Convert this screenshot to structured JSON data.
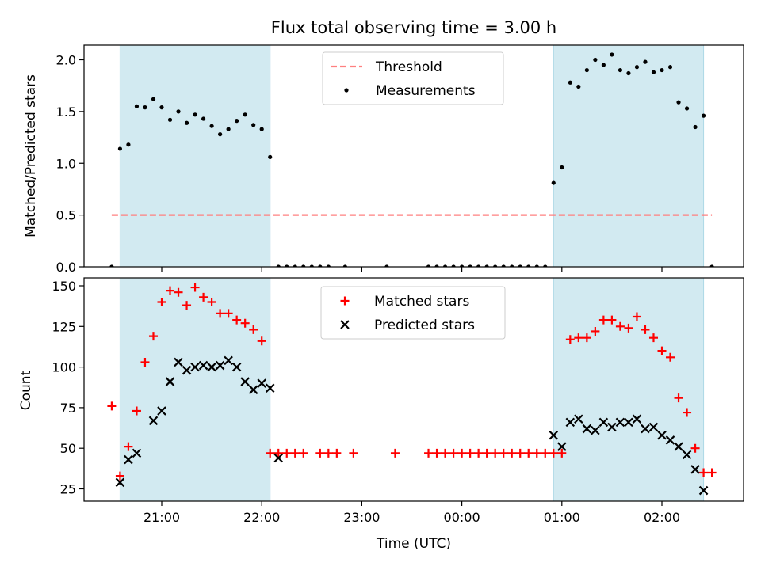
{
  "title": "Flux total observing time = 3.00 h",
  "colors": {
    "threshold": "#ff8080",
    "measurements": "#000000",
    "matched": "#ff0000",
    "predicted": "#000000",
    "shade": "#add8e6"
  },
  "chart_data": [
    {
      "type": "scatter",
      "ylabel": "Matched/Predicted stars",
      "ylim": [
        0,
        2.15
      ],
      "y_ticks": [
        "0.0",
        "0.5",
        "1.0",
        "1.5",
        "2.0"
      ],
      "y_tick_values": [
        0,
        0.5,
        1.0,
        1.5,
        2.0
      ],
      "x_ticks_unlabeled": [
        "21:00",
        "22:00",
        "23:00",
        "00:00",
        "01:00",
        "02:00"
      ],
      "shaded_ranges": [
        [
          "20:35",
          "22:05"
        ],
        [
          "00:55",
          "02:25"
        ]
      ],
      "legend": {
        "position": "top-center",
        "entries": [
          "Threshold",
          "Measurements"
        ]
      },
      "threshold": {
        "name": "Threshold",
        "value": 0.5,
        "x_range": [
          "20:30",
          "02:30"
        ]
      },
      "series": [
        {
          "name": "Measurements",
          "points": [
            [
              "20:30",
              0.0
            ],
            [
              "20:35",
              1.14
            ],
            [
              "20:40",
              1.18
            ],
            [
              "20:45",
              1.55
            ],
            [
              "20:50",
              1.54
            ],
            [
              "20:55",
              1.62
            ],
            [
              "21:00",
              1.54
            ],
            [
              "21:05",
              1.42
            ],
            [
              "21:10",
              1.5
            ],
            [
              "21:15",
              1.39
            ],
            [
              "21:20",
              1.47
            ],
            [
              "21:25",
              1.43
            ],
            [
              "21:30",
              1.36
            ],
            [
              "21:35",
              1.28
            ],
            [
              "21:40",
              1.33
            ],
            [
              "21:45",
              1.41
            ],
            [
              "21:50",
              1.47
            ],
            [
              "21:55",
              1.37
            ],
            [
              "22:00",
              1.33
            ],
            [
              "22:05",
              1.06
            ],
            [
              "22:10",
              0.0
            ],
            [
              "22:15",
              0.0
            ],
            [
              "22:20",
              0.0
            ],
            [
              "22:25",
              0.0
            ],
            [
              "22:30",
              0.0
            ],
            [
              "22:35",
              0.0
            ],
            [
              "22:40",
              0.0
            ],
            [
              "22:50",
              0.0
            ],
            [
              "23:15",
              0.0
            ],
            [
              "23:40",
              0.0
            ],
            [
              "23:45",
              0.0
            ],
            [
              "23:50",
              0.0
            ],
            [
              "23:55",
              0.0
            ],
            [
              "00:00",
              0.0
            ],
            [
              "00:05",
              0.0
            ],
            [
              "00:10",
              0.0
            ],
            [
              "00:15",
              0.0
            ],
            [
              "00:20",
              0.0
            ],
            [
              "00:25",
              0.0
            ],
            [
              "00:30",
              0.0
            ],
            [
              "00:35",
              0.0
            ],
            [
              "00:40",
              0.0
            ],
            [
              "00:45",
              0.0
            ],
            [
              "00:50",
              0.0
            ],
            [
              "00:55",
              0.81
            ],
            [
              "01:00",
              0.96
            ],
            [
              "01:05",
              1.78
            ],
            [
              "01:10",
              1.74
            ],
            [
              "01:15",
              1.9
            ],
            [
              "01:20",
              2.0
            ],
            [
              "01:25",
              1.95
            ],
            [
              "01:30",
              2.05
            ],
            [
              "01:35",
              1.9
            ],
            [
              "01:40",
              1.87
            ],
            [
              "01:45",
              1.93
            ],
            [
              "01:50",
              1.98
            ],
            [
              "01:55",
              1.88
            ],
            [
              "02:00",
              1.9
            ],
            [
              "02:05",
              1.93
            ],
            [
              "02:10",
              1.59
            ],
            [
              "02:15",
              1.53
            ],
            [
              "02:20",
              1.35
            ],
            [
              "02:25",
              1.46
            ],
            [
              "02:30",
              0.0
            ]
          ]
        }
      ]
    },
    {
      "type": "scatter",
      "ylabel": "Count",
      "xlabel": "Time (UTC)",
      "ylim": [
        17,
        155
      ],
      "y_ticks": [
        "25",
        "50",
        "75",
        "100",
        "125",
        "150"
      ],
      "y_tick_values": [
        25,
        50,
        75,
        100,
        125,
        150
      ],
      "x_ticks": [
        "21:00",
        "22:00",
        "23:00",
        "00:00",
        "01:00",
        "02:00"
      ],
      "shaded_ranges": [
        [
          "20:35",
          "22:05"
        ],
        [
          "00:55",
          "02:25"
        ]
      ],
      "legend": {
        "position": "top-center",
        "entries": [
          "Matched stars",
          "Predicted stars"
        ]
      },
      "series": [
        {
          "name": "Matched stars",
          "marker": "plus",
          "points": [
            [
              "20:30",
              76
            ],
            [
              "20:35",
              33
            ],
            [
              "20:40",
              51
            ],
            [
              "20:45",
              73
            ],
            [
              "20:50",
              103
            ],
            [
              "20:55",
              119
            ],
            [
              "21:00",
              140
            ],
            [
              "21:05",
              147
            ],
            [
              "21:10",
              146
            ],
            [
              "21:15",
              138
            ],
            [
              "21:20",
              149
            ],
            [
              "21:25",
              143
            ],
            [
              "21:30",
              140
            ],
            [
              "21:35",
              133
            ],
            [
              "21:40",
              133
            ],
            [
              "21:45",
              129
            ],
            [
              "21:50",
              127
            ],
            [
              "21:55",
              123
            ],
            [
              "22:00",
              116
            ],
            [
              "22:05",
              47
            ],
            [
              "22:10",
              47
            ],
            [
              "22:15",
              47
            ],
            [
              "22:20",
              47
            ],
            [
              "22:25",
              47
            ],
            [
              "22:35",
              47
            ],
            [
              "22:40",
              47
            ],
            [
              "22:45",
              47
            ],
            [
              "22:55",
              47
            ],
            [
              "23:20",
              47
            ],
            [
              "23:40",
              47
            ],
            [
              "23:45",
              47
            ],
            [
              "23:50",
              47
            ],
            [
              "23:55",
              47
            ],
            [
              "00:00",
              47
            ],
            [
              "00:05",
              47
            ],
            [
              "00:10",
              47
            ],
            [
              "00:15",
              47
            ],
            [
              "00:20",
              47
            ],
            [
              "00:25",
              47
            ],
            [
              "00:30",
              47
            ],
            [
              "00:35",
              47
            ],
            [
              "00:40",
              47
            ],
            [
              "00:45",
              47
            ],
            [
              "00:50",
              47
            ],
            [
              "00:55",
              47
            ],
            [
              "01:00",
              47
            ],
            [
              "01:05",
              117
            ],
            [
              "01:10",
              118
            ],
            [
              "01:15",
              118
            ],
            [
              "01:20",
              122
            ],
            [
              "01:25",
              129
            ],
            [
              "01:30",
              129
            ],
            [
              "01:35",
              125
            ],
            [
              "01:40",
              124
            ],
            [
              "01:45",
              131
            ],
            [
              "01:50",
              123
            ],
            [
              "01:55",
              118
            ],
            [
              "02:00",
              110
            ],
            [
              "02:05",
              106
            ],
            [
              "02:10",
              81
            ],
            [
              "02:15",
              72
            ],
            [
              "02:20",
              50
            ],
            [
              "02:25",
              35
            ],
            [
              "02:30",
              35
            ]
          ]
        },
        {
          "name": "Predicted stars",
          "marker": "cross",
          "points": [
            [
              "20:35",
              29
            ],
            [
              "20:40",
              43
            ],
            [
              "20:45",
              47
            ],
            [
              "20:55",
              67
            ],
            [
              "21:00",
              73
            ],
            [
              "21:05",
              91
            ],
            [
              "21:10",
              103
            ],
            [
              "21:15",
              98
            ],
            [
              "21:20",
              100
            ],
            [
              "21:25",
              101
            ],
            [
              "21:30",
              100
            ],
            [
              "21:35",
              101
            ],
            [
              "21:40",
              104
            ],
            [
              "21:45",
              100
            ],
            [
              "21:50",
              91
            ],
            [
              "21:55",
              86
            ],
            [
              "22:00",
              90
            ],
            [
              "22:05",
              87
            ],
            [
              "22:10",
              44
            ],
            [
              "00:55",
              58
            ],
            [
              "01:00",
              51
            ],
            [
              "01:05",
              66
            ],
            [
              "01:10",
              68
            ],
            [
              "01:15",
              62
            ],
            [
              "01:20",
              61
            ],
            [
              "01:25",
              66
            ],
            [
              "01:30",
              63
            ],
            [
              "01:35",
              66
            ],
            [
              "01:40",
              66
            ],
            [
              "01:45",
              68
            ],
            [
              "01:50",
              62
            ],
            [
              "01:55",
              63
            ],
            [
              "02:00",
              58
            ],
            [
              "02:05",
              55
            ],
            [
              "02:10",
              51
            ],
            [
              "02:15",
              46
            ],
            [
              "02:20",
              37
            ],
            [
              "02:25",
              24
            ]
          ]
        }
      ]
    }
  ]
}
